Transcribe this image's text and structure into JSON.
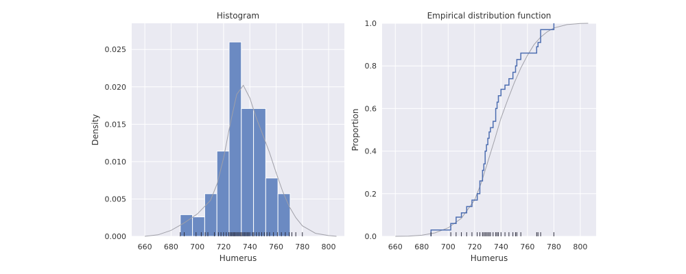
{
  "chart_data": [
    {
      "type": "bar",
      "title": "Histogram",
      "xlabel": "Humerus",
      "ylabel": "Density",
      "xlim": [
        650,
        812
      ],
      "ylim": [
        0,
        0.0285
      ],
      "xticks": [
        660,
        680,
        700,
        720,
        740,
        760,
        780,
        800
      ],
      "yticks": [
        0.0,
        0.005,
        0.01,
        0.015,
        0.02,
        0.025
      ],
      "ytick_labels": [
        "0.000",
        "0.005",
        "0.010",
        "0.015",
        "0.020",
        "0.025"
      ],
      "grid": true,
      "bins": [
        {
          "x0": 687.0,
          "x1": 696.3,
          "density": 0.0029
        },
        {
          "x0": 696.3,
          "x1": 705.6,
          "density": 0.0026
        },
        {
          "x0": 705.6,
          "x1": 714.9,
          "density": 0.0057
        },
        {
          "x0": 714.9,
          "x1": 724.2,
          "density": 0.0114
        },
        {
          "x0": 724.2,
          "x1": 733.5,
          "density": 0.026
        },
        {
          "x0": 733.5,
          "x1": 742.8,
          "density": 0.0171
        },
        {
          "x0": 742.8,
          "x1": 752.1,
          "density": 0.0171
        },
        {
          "x0": 752.1,
          "x1": 761.4,
          "density": 0.0078
        },
        {
          "x0": 761.4,
          "x1": 770.7,
          "density": 0.0057
        }
      ],
      "kde": {
        "x": [
          660,
          670,
          680,
          690,
          700,
          710,
          715,
          720,
          725,
          730,
          735,
          740,
          745,
          750,
          755,
          760,
          765,
          770,
          775,
          780,
          790,
          800,
          806
        ],
        "y": [
          0.0,
          0.0002,
          0.0008,
          0.0018,
          0.003,
          0.0048,
          0.007,
          0.0105,
          0.015,
          0.019,
          0.0202,
          0.0185,
          0.0158,
          0.0135,
          0.0112,
          0.0085,
          0.006,
          0.004,
          0.0025,
          0.0014,
          0.0004,
          0.0001,
          0.0
        ]
      },
      "rug": [
        687,
        690,
        699,
        703,
        706,
        708,
        713,
        716,
        718,
        720,
        722,
        724,
        725,
        726,
        727,
        728,
        728,
        729,
        730,
        731,
        732,
        733,
        733,
        734,
        735,
        736,
        737,
        738,
        739,
        740,
        742,
        743,
        745,
        747,
        749,
        751,
        753,
        755,
        758,
        761,
        764,
        767,
        770,
        772,
        775,
        780
      ]
    },
    {
      "type": "line",
      "title": "Empirical distribution function",
      "xlabel": "Humerus",
      "ylabel": "Proportion",
      "xlim": [
        650,
        812
      ],
      "ylim": [
        0,
        1.0
      ],
      "xticks": [
        660,
        680,
        700,
        720,
        740,
        760,
        780,
        800
      ],
      "yticks": [
        0.0,
        0.2,
        0.4,
        0.6,
        0.8,
        1.0
      ],
      "ytick_labels": [
        "0.0",
        "0.2",
        "0.4",
        "0.6",
        "0.8",
        "1.0"
      ],
      "grid": true,
      "ecdf": {
        "x": [
          687,
          702,
          706,
          710,
          714,
          718,
          722,
          724,
          726,
          727,
          728,
          729,
          730,
          731,
          732,
          734,
          736,
          737,
          738,
          740,
          743,
          746,
          749,
          751,
          752,
          755,
          767,
          768,
          770,
          780
        ],
        "y": [
          0.03,
          0.06,
          0.09,
          0.11,
          0.14,
          0.17,
          0.2,
          0.26,
          0.31,
          0.34,
          0.4,
          0.43,
          0.46,
          0.49,
          0.51,
          0.54,
          0.6,
          0.63,
          0.66,
          0.69,
          0.71,
          0.74,
          0.77,
          0.8,
          0.83,
          0.86,
          0.89,
          0.91,
          0.97,
          1.0
        ]
      },
      "cdf_curve": {
        "x": [
          660,
          670,
          680,
          690,
          700,
          710,
          720,
          725,
          730,
          735,
          740,
          745,
          750,
          755,
          760,
          765,
          770,
          775,
          780,
          790,
          800,
          806
        ],
        "y": [
          0.0,
          0.001,
          0.005,
          0.016,
          0.04,
          0.085,
          0.17,
          0.25,
          0.35,
          0.45,
          0.555,
          0.64,
          0.72,
          0.79,
          0.85,
          0.9,
          0.935,
          0.96,
          0.978,
          0.994,
          0.999,
          1.0
        ]
      },
      "rug": [
        687,
        702,
        706,
        710,
        714,
        718,
        722,
        724,
        726,
        727,
        728,
        729,
        730,
        731,
        732,
        734,
        736,
        737,
        738,
        740,
        743,
        746,
        749,
        751,
        752,
        755,
        767,
        768,
        770,
        780
      ]
    }
  ],
  "colors": {
    "bar_fill": "#6b8ac2",
    "bar_edge": "#ffffff",
    "ecdf_line": "#4c6db0",
    "smooth_curve": "#a0a0a8",
    "rug": "#2a2a3a",
    "axes_bg": "#eaeaf2",
    "grid": "#ffffff"
  }
}
